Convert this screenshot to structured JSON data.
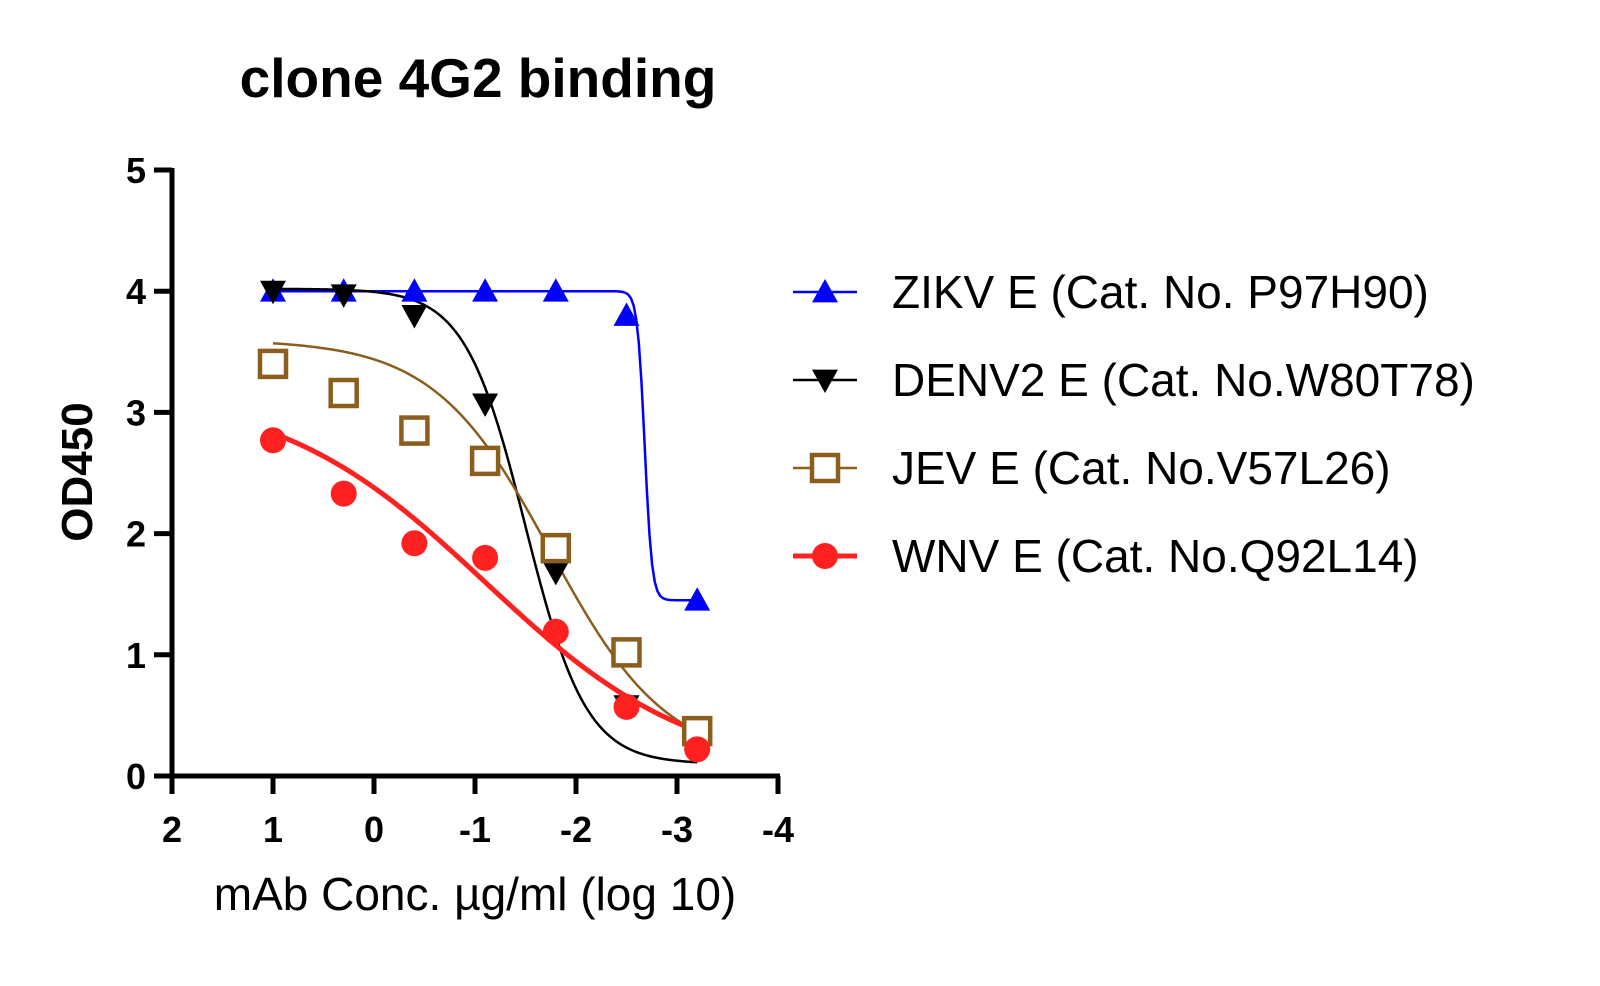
{
  "chart_data": {
    "type": "line",
    "title": "clone 4G2 binding",
    "xlabel": "mAb Conc. µg/ml (log 10)",
    "ylabel": "OD450",
    "xlim": [
      2,
      -4
    ],
    "ylim": [
      0,
      5
    ],
    "x_ticks": [
      "2",
      "1",
      "0",
      "-1",
      "-2",
      "-3",
      "-4"
    ],
    "y_ticks": [
      "0",
      "1",
      "2",
      "3",
      "4",
      "5"
    ],
    "grid": false,
    "legend_position": "right",
    "x": [
      1,
      0.3,
      -0.4,
      -1.1,
      -1.8,
      -2.5,
      -3.2
    ],
    "series": [
      {
        "name": "ZIKV E (Cat. No. P97H90)",
        "color": "#0000ff",
        "marker": "triangle-up",
        "values": [
          4.0,
          4.0,
          4.0,
          4.0,
          4.0,
          3.8,
          1.45
        ],
        "fit": {
          "top": 4.0,
          "bottom": 1.45,
          "logEC50": -2.68,
          "hill": 12
        }
      },
      {
        "name": "DENV2 E (Cat. No.W80T78)",
        "color": "#000000",
        "marker": "triangle-down",
        "values": [
          4.0,
          3.97,
          3.8,
          3.07,
          1.68,
          0.58,
          0.24
        ],
        "fit": {
          "top": 4.02,
          "bottom": 0.1,
          "logEC50": -1.5,
          "hill": 1.45
        }
      },
      {
        "name": "JEV E (Cat. No.V57L26)",
        "color": "#8b5e1e",
        "marker": "square-open",
        "values": [
          3.4,
          3.16,
          2.85,
          2.6,
          1.88,
          1.02,
          0.37
        ],
        "fit": {
          "top": 3.6,
          "bottom": 0.1,
          "logEC50": -1.75,
          "hill": 0.75
        }
      },
      {
        "name": "WNV E (Cat. No.Q92L14)",
        "color": "#ff2020",
        "marker": "circle",
        "values": [
          2.77,
          2.33,
          1.92,
          1.8,
          1.19,
          0.57,
          0.22
        ],
        "fit": {
          "top": 3.2,
          "bottom": 0.0,
          "logEC50": -1.1,
          "hill": 0.42
        }
      }
    ]
  }
}
